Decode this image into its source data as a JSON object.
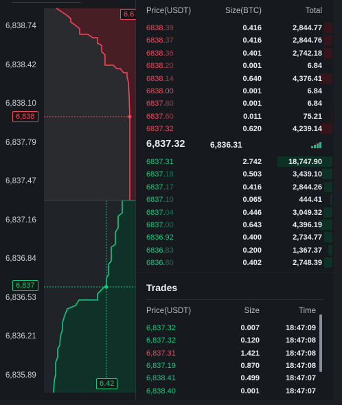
{
  "chart": {
    "y_labels": [
      "6,838.74",
      "6,838.42",
      "6,838.10",
      "6,837.79",
      "6,837.47",
      "6,837.16",
      "6,836.84",
      "6,836.53",
      "6,836.21",
      "6,835.89"
    ],
    "top_tag": "6.6",
    "ask_tag": "6,838",
    "bid_tag": "6,837",
    "bottom_tag": "6.42",
    "ask_color": "#f6465d",
    "bid_color": "#0ecb81"
  },
  "orderbook": {
    "headers": {
      "price": "Price(USDT)",
      "size": "Size(BTC)",
      "total": "Total"
    },
    "asks": [
      {
        "p_main": "6838.",
        "p_dim": "39",
        "size": "0.416",
        "total": "2,844.77",
        "depth": 0.15
      },
      {
        "p_main": "6838.",
        "p_dim": "37",
        "size": "0.416",
        "total": "2,844.76",
        "depth": 0.15
      },
      {
        "p_main": "6838.",
        "p_dim": "36",
        "size": "0.401",
        "total": "2,742.18",
        "depth": 0.145
      },
      {
        "p_main": "6838.",
        "p_dim": "20",
        "size": "0.001",
        "total": "6.84",
        "depth": 0.01
      },
      {
        "p_main": "6838.",
        "p_dim": "14",
        "size": "0.640",
        "total": "4,376.41",
        "depth": 0.23
      },
      {
        "p_main": "6838.00",
        "p_dim": "",
        "size": "0.001",
        "total": "6.84",
        "depth": 0.01
      },
      {
        "p_main": "6837.",
        "p_dim": "80",
        "size": "0.001",
        "total": "6.84",
        "depth": 0.01
      },
      {
        "p_main": "6837.",
        "p_dim": "60",
        "size": "0.011",
        "total": "75.21",
        "depth": 0.02
      },
      {
        "p_main": "6837.32",
        "p_dim": "",
        "size": "0.620",
        "total": "4,239.14",
        "depth": 0.22
      }
    ],
    "last_price": "6,837.32",
    "mark_price": "6,836.31",
    "bids": [
      {
        "p_main": "6837.31",
        "p_dim": "",
        "size": "2.742",
        "total": "18,747.90",
        "depth": 0.98
      },
      {
        "p_main": "6837.",
        "p_dim": "18",
        "size": "0.503",
        "total": "3,439.10",
        "depth": 0.18
      },
      {
        "p_main": "6837.",
        "p_dim": "17",
        "size": "0.416",
        "total": "2,844.26",
        "depth": 0.15
      },
      {
        "p_main": "6837.",
        "p_dim": "10",
        "size": "0.065",
        "total": "444.41",
        "depth": 0.04
      },
      {
        "p_main": "6837.",
        "p_dim": "04",
        "size": "0.446",
        "total": "3,049.32",
        "depth": 0.16
      },
      {
        "p_main": "6837.",
        "p_dim": "00",
        "size": "0.643",
        "total": "4,396.19",
        "depth": 0.23
      },
      {
        "p_main": "6836.92",
        "p_dim": "",
        "size": "0.400",
        "total": "2,734.77",
        "depth": 0.145
      },
      {
        "p_main": "6836.",
        "p_dim": "83",
        "size": "0.200",
        "total": "1,367.37",
        "depth": 0.07
      },
      {
        "p_main": "6836.",
        "p_dim": "80",
        "size": "0.402",
        "total": "2,748.39",
        "depth": 0.145
      }
    ]
  },
  "trades": {
    "title": "Trades",
    "headers": {
      "price": "Price(USDT)",
      "size": "Size",
      "time": "Time"
    },
    "rows": [
      {
        "price": "6,837.32",
        "side": "buy",
        "size": "0.007",
        "time": "18:47:09"
      },
      {
        "price": "6,837.32",
        "side": "buy",
        "size": "0.120",
        "time": "18:47:08"
      },
      {
        "price": "6,837.31",
        "side": "sell",
        "size": "1.421",
        "time": "18:47:08"
      },
      {
        "price": "6,837.19",
        "side": "buy",
        "size": "0.870",
        "time": "18:47:08"
      },
      {
        "price": "6,838.41",
        "side": "buy",
        "size": "0.499",
        "time": "18:47:07"
      },
      {
        "price": "6,838.40",
        "side": "buy",
        "size": "0.001",
        "time": "18:47:07"
      }
    ]
  }
}
